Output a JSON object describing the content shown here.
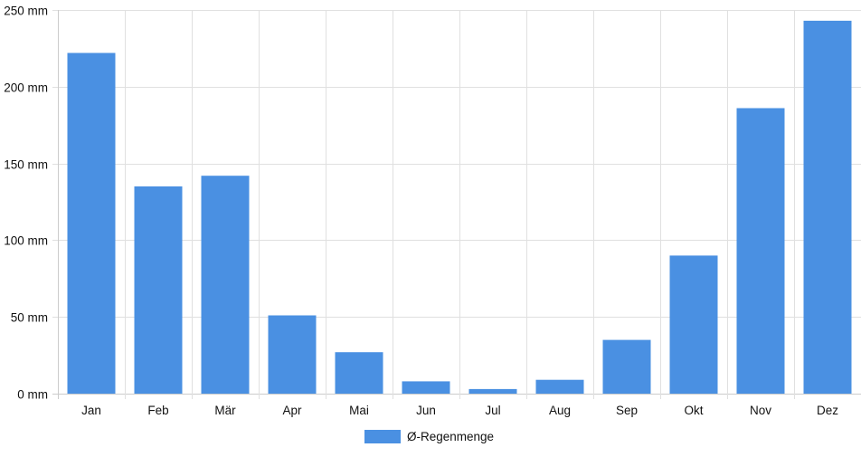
{
  "chart_data": {
    "type": "bar",
    "categories": [
      "Jan",
      "Feb",
      "Mär",
      "Apr",
      "Mai",
      "Jun",
      "Jul",
      "Aug",
      "Sep",
      "Okt",
      "Nov",
      "Dez"
    ],
    "series": [
      {
        "name": "Ø-Regenmenge",
        "values": [
          222,
          135,
          142,
          51,
          27,
          8,
          3,
          9,
          35,
          90,
          186,
          243
        ]
      }
    ],
    "y_unit": "mm",
    "ylim": [
      0,
      250
    ],
    "yticks": [
      0,
      50,
      100,
      150,
      200,
      250
    ],
    "ytick_labels": [
      "0 mm",
      "50 mm",
      "100 mm",
      "150 mm",
      "200 mm",
      "250 mm"
    ],
    "grid": true,
    "legend_position": "bottom-center",
    "colors": {
      "bar": "#4a90e2",
      "grid": "#e0e0e0",
      "axis": "#cccccc"
    }
  }
}
